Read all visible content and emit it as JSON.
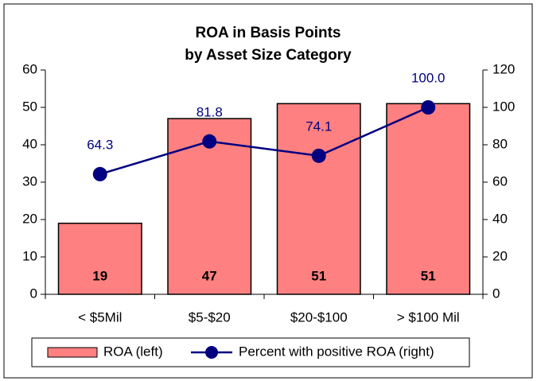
{
  "chart_data": {
    "type": "bar_line",
    "title": "ROA in Basis Points",
    "subtitle": "by Asset Size Category",
    "categories": [
      "< $5Mil",
      "$5-$20",
      "$20-$100",
      "> $100 Mil"
    ],
    "series": [
      {
        "name": "ROA (left)",
        "type": "bar",
        "color": "#ff8080",
        "values": [
          19,
          47,
          51,
          51
        ]
      },
      {
        "name": "Percent with positive ROA (right)",
        "type": "line",
        "axis": "y2",
        "color": "#000080",
        "values": [
          64.3,
          81.8,
          74.1,
          100
        ],
        "value_labels": [
          "64.3",
          "81.8",
          "74.1",
          "100.0"
        ]
      }
    ],
    "ylim": [
      0,
      60
    ],
    "yticks": [
      0,
      10,
      20,
      30,
      40,
      50,
      60
    ],
    "y2lim": [
      0,
      120
    ],
    "y2ticks": [
      0,
      20,
      40,
      60,
      80,
      100,
      120
    ],
    "grid": false,
    "legend": "bottom"
  }
}
